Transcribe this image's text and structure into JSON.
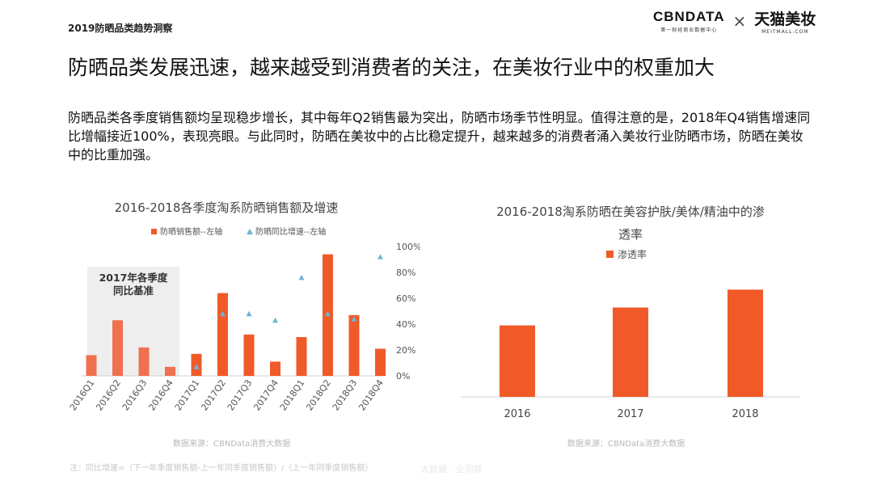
{
  "header": {
    "tag": "2019防晒品类趋势洞察",
    "brand_cbn": "CBNDATA",
    "brand_cbn_sub": "第一财经商业数据中心",
    "brand_x": "×",
    "brand_tmall": "天猫美妆",
    "brand_tmall_sub": "MEITMALL.COM"
  },
  "headline": "防晒品类发展迅速，越来越受到消费者的关注，在美妆行业中的权重加大",
  "body_text": "防晒品类各季度销售额均呈现稳步增长，其中每年Q2销售最为突出，防晒市场季节性明显。值得注意的是，2018年Q4销售增速同比增幅接近100%，表现亮眼。与此同时，防晒在美妆中的占比稳定提升，越来越多的消费者涌入美妆行业防晒市场，防晒在美妆中的比重加强。",
  "colors": {
    "bar_primary": "#f05a28",
    "bar_2016": "#f07050",
    "marker": "#6fb3d6",
    "shade": "#eeeeee"
  },
  "chart_data": [
    {
      "type": "bar",
      "title": "2016-2018各季度淘系防晒销售额及增速",
      "categories": [
        "2016Q1",
        "2016Q2",
        "2016Q3",
        "2016Q4",
        "2017Q1",
        "2017Q2",
        "2017Q3",
        "2017Q4",
        "2018Q1",
        "2018Q2",
        "2018Q3",
        "2018Q4"
      ],
      "series": [
        {
          "name": "防晒销售额--左轴",
          "axis": "left",
          "type": "bar",
          "values": [
            16,
            43,
            22,
            7,
            17,
            64,
            32,
            11,
            30,
            94,
            47,
            21
          ]
        },
        {
          "name": "防晒同比增速--左轴",
          "axis": "right",
          "type": "scatter",
          "values": [
            null,
            null,
            null,
            null,
            7,
            48,
            48,
            43,
            76,
            48,
            44,
            92
          ]
        }
      ],
      "ylim": [
        0,
        100
      ],
      "right_ticks": [
        "0%",
        "20%",
        "40%",
        "60%",
        "80%",
        "100%"
      ],
      "right_tick_values": [
        0,
        20,
        40,
        60,
        80,
        100
      ],
      "annotation": "2017年各季度同比基准",
      "annotation_lines": [
        "2017年各季度",
        "同比基准"
      ],
      "legend_position": "top-center",
      "source": "数据来源：CBNData消费大数据"
    },
    {
      "type": "bar",
      "title_lines": [
        "2016-2018淘系防晒在美容护肤/美体/精油中的渗",
        "透率"
      ],
      "categories": [
        "2016",
        "2017",
        "2018"
      ],
      "series": [
        {
          "name": "渗透率",
          "values": [
            44,
            55,
            66
          ]
        }
      ],
      "ylim": [
        0,
        100
      ],
      "legend_position": "top-center",
      "source": "数据来源：CBNData消费大数据"
    }
  ],
  "note": "注：同比增速=（下一年季度销售额-上一年同季度销售额）/（上一年同季度销售额）",
  "watermark": "大数据 · 全洞察"
}
